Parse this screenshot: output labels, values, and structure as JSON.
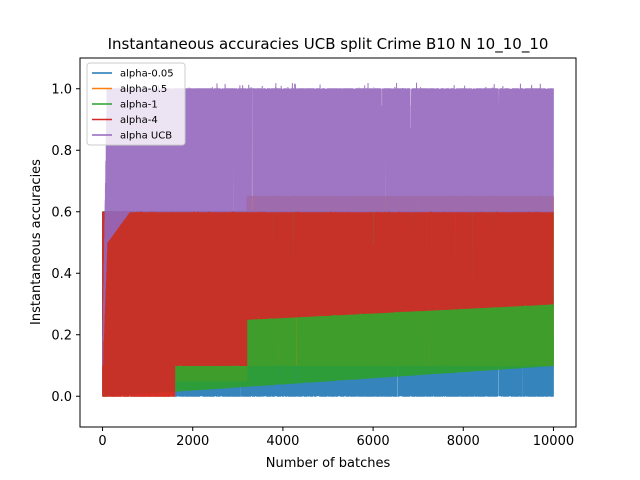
{
  "chart_data": {
    "type": "line",
    "title": "Instantaneous accuracies UCB split Crime B10 N 10_10_10",
    "xlabel": "Number of batches",
    "ylabel": "Instantaneous accuracies",
    "xlim": [
      -500,
      10500
    ],
    "ylim": [
      -0.1,
      1.1
    ],
    "xticks": [
      0,
      2000,
      4000,
      6000,
      8000,
      10000
    ],
    "yticks": [
      0.0,
      0.2,
      0.4,
      0.6,
      0.8,
      1.0
    ],
    "xtick_labels": [
      "0",
      "2000",
      "4000",
      "6000",
      "8000",
      "10000"
    ],
    "ytick_labels": [
      "0.0",
      "0.2",
      "0.4",
      "0.6",
      "0.8",
      "1.0"
    ],
    "grid": false,
    "legend_position": "top-left",
    "n_points": 10000,
    "series": [
      {
        "name": "alpha-0.05",
        "color": "#1f77b4",
        "segments": [
          {
            "x": [
              0,
              10000
            ],
            "low": [
              0.0,
              0.0
            ],
            "high": [
              0.6,
              0.6
            ],
            "typical": [
              0.3,
              0.3
            ]
          }
        ]
      },
      {
        "name": "alpha-0.5",
        "color": "#ff7f0e",
        "segments": [
          {
            "x": [
              0,
              1600,
              1600,
              3200,
              3200,
              10000
            ],
            "low": [
              0.0,
              0.0,
              0.05,
              0.05,
              0.1,
              0.1
            ],
            "high": [
              0.6,
              0.6,
              0.6,
              0.6,
              0.65,
              0.65
            ],
            "typical": [
              0.3,
              0.3,
              0.3,
              0.3,
              0.3,
              0.3
            ]
          }
        ]
      },
      {
        "name": "alpha-1",
        "color": "#2ca02c",
        "segments": [
          {
            "x": [
              0,
              10000
            ],
            "low": [
              0.0,
              0.1
            ],
            "high": [
              0.6,
              0.6
            ],
            "typical": [
              0.35,
              0.4
            ]
          }
        ]
      },
      {
        "name": "alpha-4",
        "color": "#d62728",
        "segments": [
          {
            "x": [
              0,
              1600,
              1600,
              3200,
              3200,
              10000
            ],
            "low": [
              0.0,
              0.0,
              0.1,
              0.1,
              0.25,
              0.3
            ],
            "high": [
              0.6,
              0.6,
              0.6,
              0.6,
              0.6,
              0.6
            ],
            "typical": [
              0.3,
              0.3,
              0.35,
              0.35,
              0.4,
              0.4
            ]
          }
        ]
      },
      {
        "name": "alpha UCB",
        "color": "#9467bd",
        "segments": [
          {
            "x": [
              0,
              100,
              600,
              2000,
              4000,
              10000
            ],
            "low": [
              0.1,
              0.5,
              0.6,
              0.6,
              0.6,
              0.6
            ],
            "high": [
              0.1,
              1.0,
              1.0,
              1.0,
              1.0,
              1.0
            ],
            "typical": [
              0.1,
              0.85,
              0.9,
              0.9,
              0.9,
              0.9
            ]
          }
        ]
      }
    ]
  }
}
